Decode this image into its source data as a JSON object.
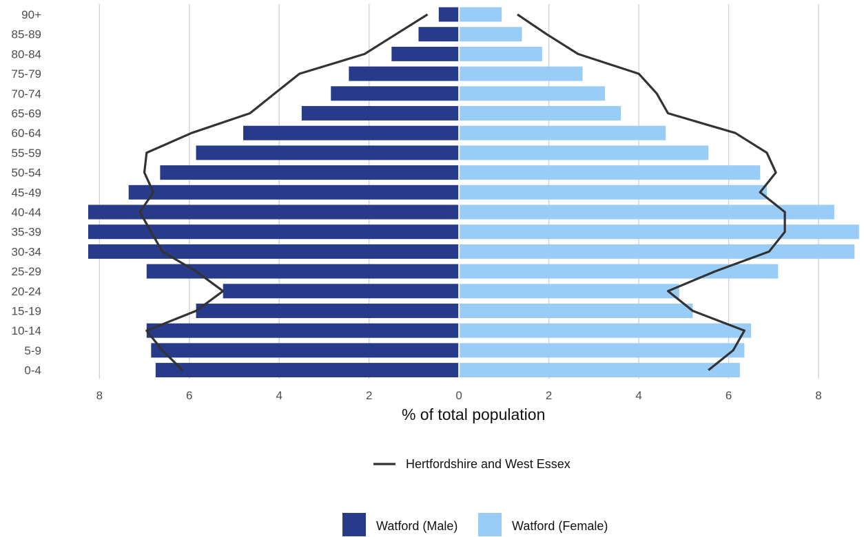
{
  "chart_data": {
    "type": "bar",
    "subtype": "population-pyramid",
    "orientation": "horizontal",
    "categories": [
      "0-4",
      "5-9",
      "10-14",
      "15-19",
      "20-24",
      "25-29",
      "30-34",
      "35-39",
      "40-44",
      "45-49",
      "50-54",
      "55-59",
      "60-64",
      "65-69",
      "70-74",
      "75-79",
      "80-84",
      "85-89",
      "90+"
    ],
    "series": [
      {
        "name": "Watford (Male)",
        "side": "left",
        "color": "#283a8a",
        "values": [
          6.75,
          6.85,
          6.95,
          5.85,
          5.25,
          6.95,
          8.25,
          8.25,
          8.25,
          7.35,
          6.65,
          5.85,
          4.8,
          3.5,
          2.85,
          2.45,
          1.5,
          0.9,
          0.45
        ]
      },
      {
        "name": "Watford (Female)",
        "side": "right",
        "color": "#99ccf7",
        "values": [
          6.25,
          6.35,
          6.5,
          5.2,
          4.9,
          7.1,
          8.8,
          8.9,
          8.35,
          6.85,
          6.7,
          5.55,
          4.6,
          3.6,
          3.25,
          2.75,
          1.85,
          1.4,
          0.95
        ]
      }
    ],
    "reference_lines": [
      {
        "name": "Hertfordshire and West Essex",
        "color": "#333333",
        "male": [
          6.15,
          6.6,
          6.95,
          5.85,
          5.25,
          5.85,
          6.6,
          6.85,
          7.1,
          6.8,
          7.0,
          6.95,
          5.95,
          4.65,
          4.1,
          3.55,
          2.1,
          1.4,
          0.7
        ],
        "female": [
          5.55,
          6.1,
          6.35,
          5.2,
          4.65,
          5.7,
          6.9,
          7.25,
          7.25,
          6.7,
          7.05,
          6.85,
          6.15,
          4.65,
          4.4,
          4.0,
          2.65,
          1.95,
          1.3
        ]
      }
    ],
    "xlabel": "% of total population",
    "ylabel": "",
    "xlim": [
      -8.25,
      8.95
    ],
    "xticks": [
      -8,
      -6,
      -4,
      -2,
      0,
      2,
      4,
      6,
      8
    ],
    "xtick_labels": [
      "8",
      "6",
      "4",
      "2",
      "0",
      "2",
      "4",
      "6",
      "8"
    ],
    "grid": "vertical-major",
    "legend": {
      "position": "bottom",
      "line_entry": "Hertfordshire and West Essex",
      "fill_entries": [
        "Watford (Male)",
        "Watford (Female)"
      ]
    }
  }
}
